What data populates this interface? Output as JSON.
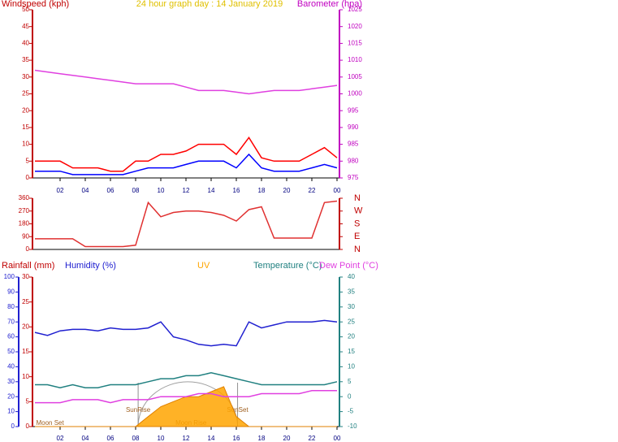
{
  "chart_data": [
    {
      "type": "line",
      "title": "24 hour graph day : 14 January 2019",
      "y_label": "Windspeed (kph)",
      "y2_label": "Barometer (hpa)",
      "x": [
        0,
        1,
        2,
        3,
        4,
        5,
        6,
        7,
        8,
        9,
        10,
        11,
        12,
        13,
        14,
        15,
        16,
        17,
        18,
        19,
        20,
        21,
        22,
        23,
        24
      ],
      "xlim": [
        0,
        24
      ],
      "xticks": [
        {
          "value": 2,
          "label": "02"
        },
        {
          "value": 4,
          "label": "04"
        },
        {
          "value": 6,
          "label": "06"
        },
        {
          "value": 8,
          "label": "08"
        },
        10,
        12,
        14,
        16,
        18,
        20,
        22,
        {
          "value": 24,
          "label": "00"
        }
      ],
      "ylim": [
        0,
        50
      ],
      "yticks": [
        0,
        5,
        10,
        15,
        20,
        25,
        30,
        35,
        40,
        45,
        50
      ],
      "y2lim": [
        975,
        1025
      ],
      "y2ticks": [
        975,
        980,
        985,
        990,
        995,
        1000,
        1005,
        1010,
        1015,
        1020,
        1025
      ],
      "series": [
        {
          "color": "#ff0000",
          "values": [
            5,
            5,
            5,
            3,
            3,
            3,
            2,
            2,
            5,
            5,
            7,
            7,
            8,
            10,
            10,
            10,
            7,
            12,
            6,
            5,
            5,
            5,
            7,
            9,
            6
          ]
        },
        {
          "color": "#0000ff",
          "values": [
            2,
            2,
            2,
            1,
            1,
            1,
            1,
            1,
            2,
            3,
            3,
            3,
            4,
            5,
            5,
            5,
            3,
            7,
            3,
            2,
            2,
            2,
            3,
            4,
            3
          ]
        },
        {
          "color": "#e040e0",
          "axis": "y2",
          "values": [
            1007,
            1006.5,
            1006,
            1005.5,
            1005,
            1004.5,
            1004,
            1003.5,
            1003,
            1003,
            1003,
            1003,
            1002,
            1001,
            1001,
            1001,
            1000.5,
            1000,
            1000.5,
            1001,
            1001,
            1001,
            1001.5,
            1002,
            1002.5
          ]
        }
      ]
    },
    {
      "type": "line",
      "x": [
        0,
        1,
        2,
        3,
        4,
        5,
        6,
        7,
        8,
        9,
        10,
        11,
        12,
        13,
        14,
        15,
        16,
        17,
        18,
        19,
        20,
        21,
        22,
        23,
        24
      ],
      "xlim": [
        0,
        24
      ],
      "ylim": [
        0,
        360
      ],
      "yticks": [
        0,
        90,
        180,
        270,
        360
      ],
      "y2lim": [
        0,
        360
      ],
      "y2ticks": [
        {
          "value": 0,
          "label": "N"
        },
        {
          "value": 90,
          "label": "E"
        },
        {
          "value": 180,
          "label": "S"
        },
        {
          "value": 270,
          "label": "W"
        },
        {
          "value": 360,
          "label": "N"
        }
      ],
      "series": [
        {
          "color": "#e03030",
          "values": [
            75,
            75,
            75,
            75,
            20,
            20,
            20,
            20,
            30,
            330,
            230,
            260,
            270,
            270,
            260,
            240,
            200,
            280,
            300,
            80,
            80,
            80,
            80,
            330,
            340
          ]
        }
      ]
    },
    {
      "type": "line",
      "y3_label": "Rainfall (mm)",
      "x": [
        0,
        1,
        2,
        3,
        4,
        5,
        6,
        7,
        8,
        9,
        10,
        11,
        12,
        13,
        14,
        15,
        16,
        17,
        18,
        19,
        20,
        21,
        22,
        23,
        24
      ],
      "xlim": [
        0,
        24
      ],
      "xticks": [
        {
          "value": 2,
          "label": "02"
        },
        {
          "value": 4,
          "label": "04"
        },
        {
          "value": 6,
          "label": "06"
        },
        {
          "value": 8,
          "label": "08"
        },
        10,
        12,
        14,
        16,
        18,
        20,
        22,
        {
          "value": 24,
          "label": "00"
        }
      ],
      "ylim": [
        0,
        100
      ],
      "yticks": [
        0,
        10,
        20,
        30,
        40,
        50,
        60,
        70,
        80,
        90,
        100
      ],
      "y3lim": [
        0,
        30
      ],
      "y3ticks": [
        0,
        5,
        10,
        15,
        20,
        25,
        30
      ],
      "y2lim": [
        -10,
        40
      ],
      "y2ticks": [
        -10,
        -5,
        0,
        5,
        10,
        15,
        20,
        25,
        30,
        35,
        40
      ],
      "series": [
        {
          "name": "Humidity (%)",
          "color": "#2020d0",
          "values": [
            63,
            61,
            64,
            65,
            65,
            64,
            66,
            65,
            65,
            66,
            70,
            60,
            58,
            55,
            54,
            55,
            54,
            70,
            66,
            68,
            70,
            70,
            70,
            71,
            70
          ]
        },
        {
          "name": "UV",
          "color": "#ffa500",
          "axis": "y3",
          "area": true,
          "values": [
            0,
            0,
            0,
            0,
            0,
            0,
            0,
            0,
            0,
            2,
            4,
            5,
            6,
            6,
            7,
            8,
            2,
            0,
            0,
            0,
            0,
            0,
            0,
            0,
            0
          ]
        },
        {
          "name": "Temperature (°C)",
          "color": "#208080",
          "axis": "y2",
          "values": [
            4,
            4,
            3,
            4,
            3,
            3,
            4,
            4,
            4,
            5,
            6,
            6,
            7,
            7,
            8,
            7,
            6,
            5,
            4,
            4,
            4,
            4,
            4,
            4,
            5
          ]
        },
        {
          "name": "Dew Point (°C)",
          "color": "#e040e0",
          "axis": "y2",
          "values": [
            -2,
            -2,
            -2,
            -1,
            -1,
            -1,
            -2,
            -1,
            -1,
            -1,
            0,
            0,
            0,
            1,
            1,
            0,
            0,
            0,
            1,
            1,
            1,
            1,
            2,
            2,
            2
          ]
        }
      ],
      "annotations": [
        {
          "label": "Moon Set",
          "x": 1.2
        },
        {
          "label": "SunRise",
          "x": 8.2
        },
        {
          "label": "Moon Rise",
          "x": 12.4
        },
        {
          "label": "SunSet",
          "x": 16.1
        }
      ]
    }
  ]
}
